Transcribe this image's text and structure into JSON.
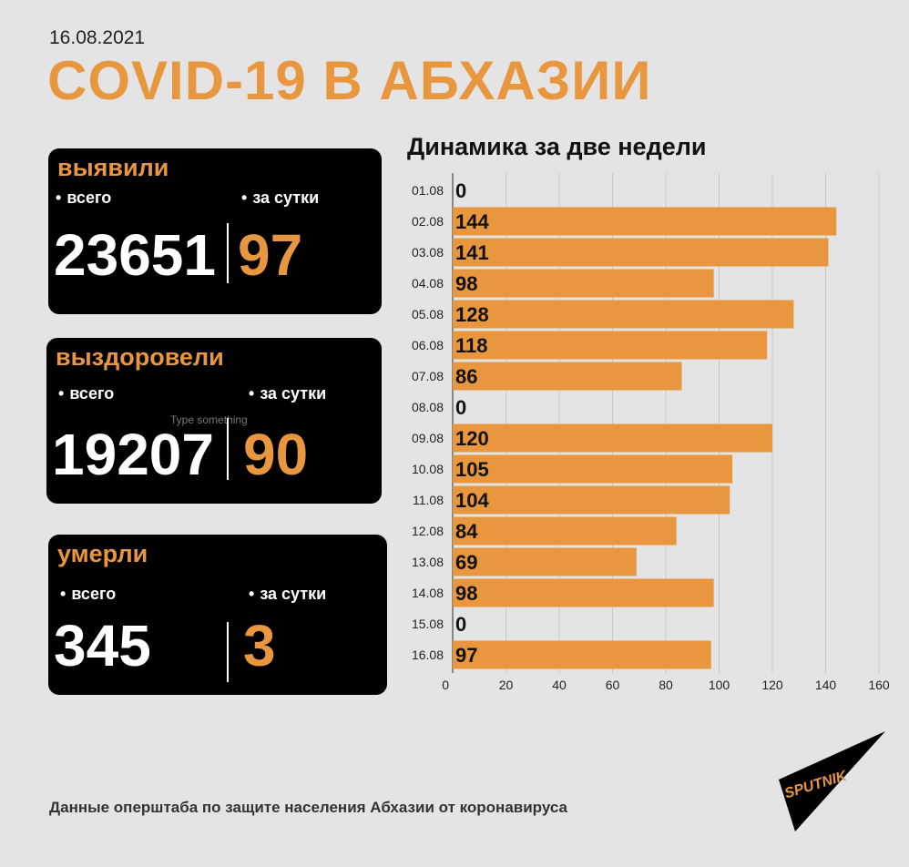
{
  "header": {
    "date": "16.08.2021",
    "title": "COVID-19 В АБХАЗИИ"
  },
  "cards": [
    {
      "label": "выявили",
      "total_label": "всего",
      "day_label": "за сутки",
      "total": "23651",
      "day": "97"
    },
    {
      "label": "выздоровели",
      "total_label": "всего",
      "day_label": "за сутки",
      "total": "19207",
      "day": "90"
    },
    {
      "label": "умерли",
      "total_label": "всего",
      "day_label": "за сутки",
      "total": "345",
      "day": "3"
    }
  ],
  "placeholder": "Type something",
  "footer": "Данные оперштаба по защите населения Абхазии от коронавируса",
  "logo": {
    "text": "SPUTNIK",
    "icon": "sputnik-logo"
  },
  "colors": {
    "accent": "#e9973f",
    "card_bg": "#000000",
    "background": "#e4e4e4"
  },
  "chart_data": {
    "type": "bar",
    "orientation": "horizontal",
    "title": "Динамика за две недели",
    "categories": [
      "01.08",
      "02.08",
      "03.08",
      "04.08",
      "05.08",
      "06.08",
      "07.08",
      "08.08",
      "09.08",
      "10.08",
      "11.08",
      "12.08",
      "13.08",
      "14.08",
      "15.08",
      "16.08"
    ],
    "values": [
      0,
      144,
      141,
      98,
      128,
      118,
      86,
      0,
      120,
      105,
      104,
      84,
      69,
      98,
      0,
      97
    ],
    "xlim": [
      0,
      160
    ],
    "xticks": [
      0,
      20,
      40,
      60,
      80,
      100,
      120,
      140,
      160
    ],
    "grid": true,
    "bar_color": "#e9973f"
  }
}
